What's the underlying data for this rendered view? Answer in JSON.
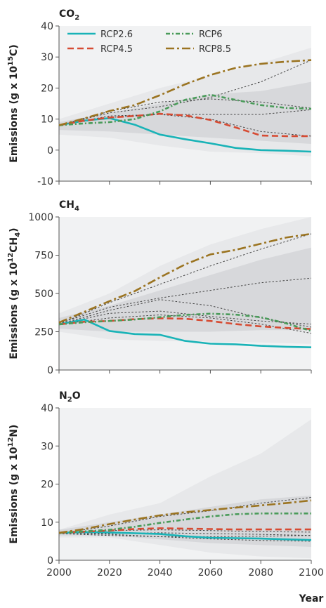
{
  "chart_data": [
    {
      "type": "line",
      "title_main": "CO",
      "title_sub": "2",
      "ylabel": {
        "main": "Emissions (g x 10",
        "sup": "15",
        "tail": "C)"
      },
      "ylim": [
        -10,
        40
      ],
      "yticks": [
        "-10",
        "0",
        "10",
        "20",
        "30",
        "40"
      ],
      "xlim": [
        2000,
        2100
      ],
      "legend": {
        "placement": "top-left",
        "entries": [
          "RCP2.6",
          "RCP6",
          "RCP4.5",
          "RCP8.5"
        ]
      },
      "series": [
        {
          "name": "RCP2.6",
          "color": "#19b3b7",
          "dash": "solid",
          "x": [
            2000,
            2010,
            2020,
            2030,
            2040,
            2050,
            2060,
            2070,
            2080,
            2090,
            2100
          ],
          "y": [
            8,
            9.5,
            10.3,
            8.2,
            5,
            3.5,
            2.2,
            0.7,
            0,
            -0.2,
            -0.5
          ]
        },
        {
          "name": "RCP4.5",
          "color": "#d64b33",
          "dash": "dash",
          "x": [
            2000,
            2010,
            2020,
            2030,
            2040,
            2050,
            2060,
            2070,
            2080,
            2090,
            2100
          ],
          "y": [
            8,
            9.5,
            10.5,
            11,
            11.7,
            11.2,
            9.7,
            7.3,
            4.7,
            4.5,
            4.5
          ]
        },
        {
          "name": "RCP6",
          "color": "#4a9b5a",
          "dash": "dashdot",
          "x": [
            2000,
            2010,
            2020,
            2030,
            2040,
            2050,
            2060,
            2070,
            2080,
            2090,
            2100
          ],
          "y": [
            8,
            8.6,
            9,
            10,
            12.5,
            16.2,
            17.8,
            16.2,
            14.5,
            13.6,
            13.3
          ]
        },
        {
          "name": "RCP8.5",
          "color": "#9b7421",
          "dash": "longdashdot",
          "x": [
            2000,
            2010,
            2020,
            2030,
            2040,
            2050,
            2060,
            2070,
            2080,
            2090,
            2100
          ],
          "y": [
            8,
            10.2,
            12.6,
            14.5,
            17.7,
            21.2,
            24.2,
            26.5,
            27.8,
            28.5,
            29
          ]
        }
      ],
      "scenarios": [
        {
          "x": [
            2000,
            2020,
            2040,
            2060,
            2080,
            2100
          ],
          "y": [
            8,
            12,
            14,
            17,
            22,
            29
          ]
        },
        {
          "x": [
            2000,
            2020,
            2040,
            2060,
            2080,
            2100
          ],
          "y": [
            8,
            12.5,
            15.5,
            16.5,
            15.5,
            13.5
          ]
        },
        {
          "x": [
            2000,
            2020,
            2040,
            2060,
            2080,
            2100
          ],
          "y": [
            8,
            10.5,
            11.5,
            11.5,
            11.5,
            13
          ]
        },
        {
          "x": [
            2000,
            2020,
            2040,
            2060,
            2080,
            2100
          ],
          "y": [
            8,
            11,
            11.5,
            10,
            6,
            4.5
          ]
        }
      ],
      "bands": [
        {
          "color": "#e7e8ea",
          "x": [
            2000,
            2020,
            2040,
            2060,
            2080,
            2100
          ],
          "lower": [
            5,
            4,
            1.5,
            -0.5,
            -1,
            -2
          ],
          "upper": [
            10,
            15,
            20,
            24,
            28,
            33
          ]
        },
        {
          "color": "#d7d8db",
          "x": [
            2000,
            2020,
            2040,
            2060,
            2080,
            2100
          ],
          "lower": [
            6.5,
            6,
            5,
            4,
            3,
            2
          ],
          "upper": [
            9,
            12,
            15,
            18,
            19,
            22
          ]
        }
      ]
    },
    {
      "type": "line",
      "title_main": "CH",
      "title_sub": "4",
      "ylabel": {
        "main": "Emissions (g x 10",
        "sup": "12",
        "tail": "CH",
        "sub2": "4",
        "close": ")"
      },
      "ylim": [
        0,
        1000
      ],
      "yticks": [
        "0",
        "250",
        "500",
        "750",
        "1000"
      ],
      "xlim": [
        2000,
        2100
      ],
      "series": [
        {
          "name": "RCP2.6",
          "color": "#19b3b7",
          "dash": "solid",
          "x": [
            2000,
            2010,
            2020,
            2030,
            2040,
            2050,
            2060,
            2070,
            2080,
            2090,
            2100
          ],
          "y": [
            298,
            330,
            255,
            235,
            230,
            190,
            172,
            168,
            158,
            152,
            148
          ]
        },
        {
          "name": "RCP4.5",
          "color": "#d64b33",
          "dash": "dash",
          "x": [
            2000,
            2010,
            2020,
            2030,
            2040,
            2050,
            2060,
            2070,
            2080,
            2090,
            2100
          ],
          "y": [
            298,
            315,
            320,
            332,
            338,
            335,
            320,
            300,
            285,
            275,
            268
          ]
        },
        {
          "name": "RCP6",
          "color": "#4a9b5a",
          "dash": "dashdot",
          "x": [
            2000,
            2010,
            2020,
            2030,
            2040,
            2050,
            2060,
            2070,
            2080,
            2090,
            2100
          ],
          "y": [
            298,
            312,
            320,
            330,
            345,
            360,
            368,
            362,
            345,
            305,
            255
          ]
        },
        {
          "name": "RCP8.5",
          "color": "#9b7421",
          "dash": "longdashdot",
          "x": [
            2000,
            2010,
            2020,
            2030,
            2040,
            2050,
            2060,
            2070,
            2080,
            2090,
            2100
          ],
          "y": [
            310,
            380,
            450,
            515,
            605,
            690,
            755,
            785,
            825,
            865,
            890
          ]
        }
      ],
      "scenarios": [
        {
          "x": [
            2000,
            2020,
            2040,
            2060,
            2080,
            2100
          ],
          "y": [
            300,
            440,
            560,
            680,
            790,
            890
          ]
        },
        {
          "x": [
            2000,
            2020,
            2040,
            2060,
            2080,
            2100
          ],
          "y": [
            305,
            410,
            470,
            520,
            570,
            600
          ]
        },
        {
          "x": [
            2000,
            2020,
            2040,
            2060,
            2080,
            2100
          ],
          "y": [
            300,
            390,
            460,
            420,
            340,
            280
          ]
        },
        {
          "x": [
            2000,
            2020,
            2040,
            2060,
            2080,
            2100
          ],
          "y": [
            300,
            370,
            385,
            350,
            320,
            300
          ]
        },
        {
          "x": [
            2000,
            2020,
            2040,
            2060,
            2080,
            2100
          ],
          "y": [
            298,
            340,
            360,
            340,
            300,
            240
          ]
        }
      ],
      "bands": [
        {
          "color": "#e7e8ea",
          "x": [
            2000,
            2020,
            2040,
            2060,
            2080,
            2100
          ],
          "lower": [
            250,
            200,
            190,
            185,
            180,
            170
          ],
          "upper": [
            370,
            500,
            680,
            820,
            920,
            1000
          ]
        },
        {
          "color": "#d7d8db",
          "x": [
            2000,
            2020,
            2040,
            2060,
            2080,
            2100
          ],
          "lower": [
            270,
            250,
            250,
            250,
            260,
            260
          ],
          "upper": [
            340,
            420,
            520,
            620,
            720,
            800
          ]
        }
      ]
    },
    {
      "type": "line",
      "title_main": "N",
      "title_sub": "2",
      "title_tail": "O",
      "ylabel": {
        "main": "Emissions (g x 10",
        "sup": "12",
        "tail": "N)"
      },
      "ylim": [
        0,
        40
      ],
      "yticks": [
        "0",
        "10",
        "20",
        "30",
        "40"
      ],
      "xlim": [
        2000,
        2100
      ],
      "xticks": [
        "2000",
        "2020",
        "2040",
        "2060",
        "2080",
        "2100"
      ],
      "xlabel": "Year",
      "series": [
        {
          "name": "RCP2.6",
          "color": "#19b3b7",
          "dash": "solid",
          "x": [
            2000,
            2010,
            2020,
            2030,
            2040,
            2050,
            2060,
            2070,
            2080,
            2090,
            2100
          ],
          "y": [
            7.2,
            7.4,
            7.3,
            7.1,
            6.9,
            6.3,
            5.9,
            5.8,
            5.7,
            5.5,
            5.3
          ]
        },
        {
          "name": "RCP4.5",
          "color": "#d64b33",
          "dash": "dash",
          "x": [
            2000,
            2010,
            2020,
            2030,
            2040,
            2050,
            2060,
            2070,
            2080,
            2090,
            2100
          ],
          "y": [
            7.2,
            7.5,
            7.8,
            8.2,
            8.4,
            8.3,
            8.2,
            8.1,
            8.1,
            8.1,
            8.1
          ]
        },
        {
          "name": "RCP6",
          "color": "#4a9b5a",
          "dash": "dashdot",
          "x": [
            2000,
            2010,
            2020,
            2030,
            2040,
            2050,
            2060,
            2070,
            2080,
            2090,
            2100
          ],
          "y": [
            7.2,
            7.6,
            8.0,
            8.8,
            9.8,
            10.7,
            11.5,
            12.1,
            12.3,
            12.3,
            12.3
          ]
        },
        {
          "name": "RCP8.5",
          "color": "#9b7421",
          "dash": "longdashdot",
          "x": [
            2000,
            2010,
            2020,
            2030,
            2040,
            2050,
            2060,
            2070,
            2080,
            2090,
            2100
          ],
          "y": [
            7.2,
            8.2,
            9.5,
            10.7,
            11.8,
            12.6,
            13.2,
            13.8,
            14.4,
            15.0,
            15.7
          ]
        }
      ],
      "scenarios": [
        {
          "x": [
            2000,
            2020,
            2040,
            2060,
            2080,
            2100
          ],
          "y": [
            7,
            9,
            11.5,
            13,
            15,
            16.5
          ]
        },
        {
          "x": [
            2000,
            2020,
            2040,
            2060,
            2080,
            2100
          ],
          "y": [
            7,
            7.8,
            8,
            7.8,
            7.5,
            7.4
          ]
        },
        {
          "x": [
            2000,
            2020,
            2040,
            2060,
            2080,
            2100
          ],
          "y": [
            7.2,
            7,
            7.2,
            7,
            6.8,
            6.5
          ]
        },
        {
          "x": [
            2000,
            2020,
            2040,
            2060,
            2080,
            2100
          ],
          "y": [
            7,
            6.5,
            6.2,
            6.2,
            6.3,
            6.5
          ]
        },
        {
          "x": [
            2000,
            2020,
            2040,
            2060,
            2080,
            2100
          ],
          "y": [
            7.2,
            6.8,
            6.2,
            5.6,
            5.2,
            5.0
          ]
        }
      ],
      "bands": [
        {
          "color": "#e7e8ea",
          "x": [
            2000,
            2020,
            2040,
            2060,
            2080,
            2100
          ],
          "lower": [
            6,
            6,
            4,
            2,
            1,
            0.5
          ],
          "upper": [
            8,
            12,
            15,
            22,
            28,
            37
          ]
        },
        {
          "color": "#d7d8db",
          "x": [
            2000,
            2020,
            2040,
            2060,
            2080,
            2100
          ],
          "lower": [
            6.5,
            6.5,
            5.5,
            4.5,
            4,
            3.5
          ],
          "upper": [
            8,
            10,
            12,
            14,
            16,
            17
          ]
        }
      ]
    }
  ]
}
